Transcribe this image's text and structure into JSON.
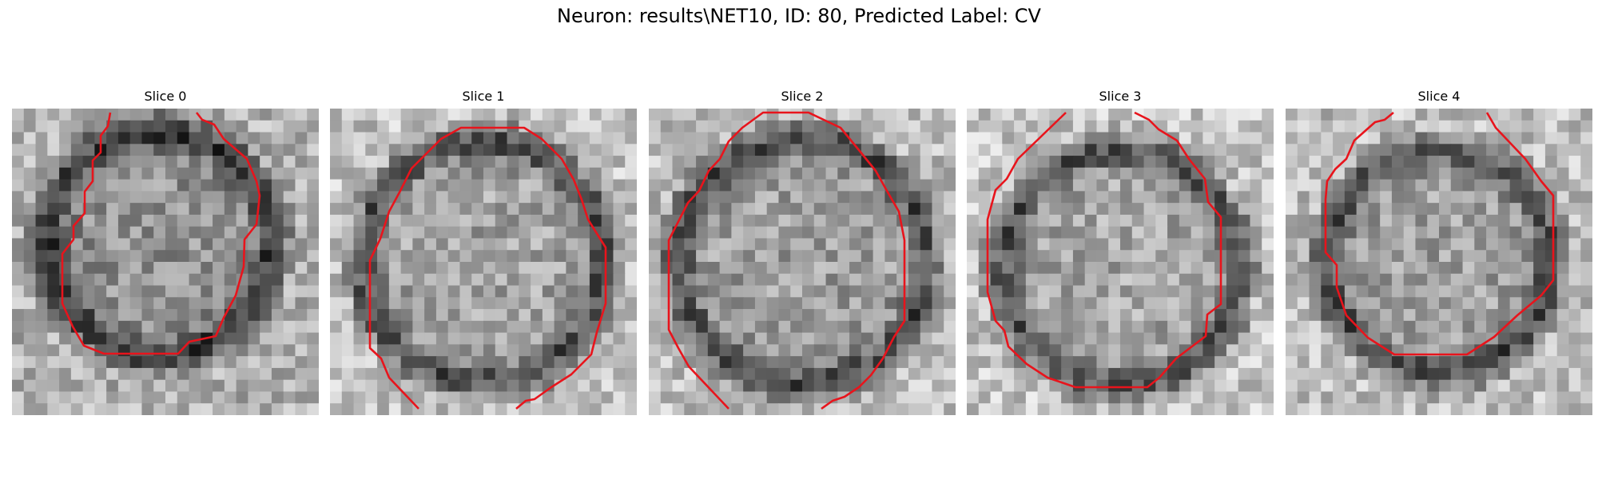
{
  "figure": {
    "title": "Neuron: results\\NET10, ID: 80, Predicted Label: CV"
  },
  "colors": {
    "contour": "#e8141c",
    "background": "#ffffff"
  },
  "panels": [
    {
      "title": "Slice 0"
    },
    {
      "title": "Slice 1"
    },
    {
      "title": "Slice 2"
    },
    {
      "title": "Slice 3"
    },
    {
      "title": "Slice 4"
    }
  ]
}
